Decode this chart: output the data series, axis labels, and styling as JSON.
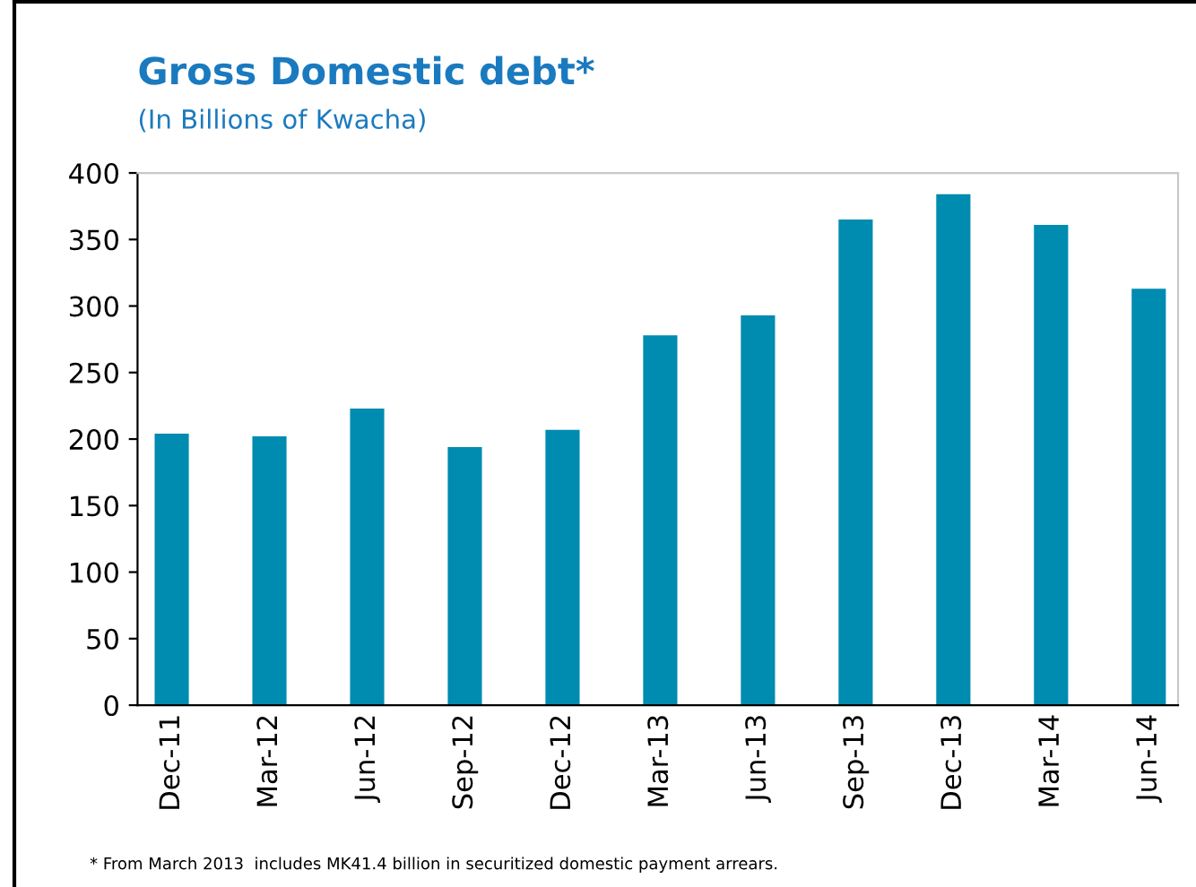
{
  "chart_data": {
    "type": "bar",
    "title": "Gross Domestic debt*",
    "subtitle": "(In Billions of Kwacha)",
    "categories": [
      "Dec-11",
      "Mar-12",
      "Jun-12",
      "Sep-12",
      "Dec-12",
      "Mar-13",
      "Jun-13",
      "Sep-13",
      "Dec-13",
      "Mar-14",
      "Jun-14"
    ],
    "values": [
      204,
      202,
      223,
      194,
      207,
      278,
      293,
      365,
      384,
      361,
      313
    ],
    "color": "#008bb0",
    "ylim": [
      0,
      400
    ],
    "yticks": [
      0,
      50,
      100,
      150,
      200,
      250,
      300,
      350,
      400
    ],
    "grid": false,
    "legend": false,
    "annotations": [
      "* From March 2013  includes MK41.4 billion in securitized domestic payment arrears."
    ]
  }
}
